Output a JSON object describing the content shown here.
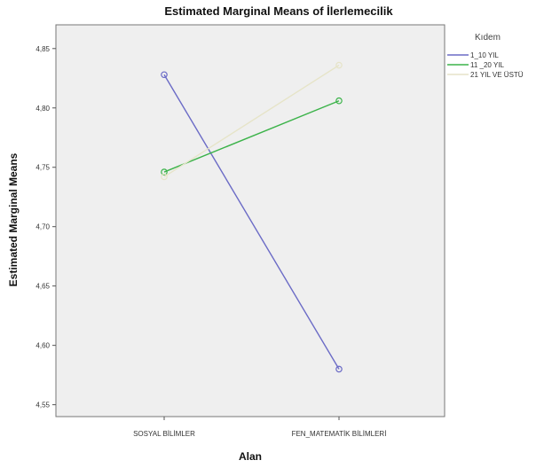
{
  "chart_data": {
    "type": "line",
    "title": "Estimated Marginal Means of İlerlemecilik",
    "xlabel": "Alan",
    "ylabel": "Estimated Marginal Means",
    "categories": [
      "SOSYAL BİLİMLER",
      "FEN_MATEMATİK BİLİMLERİ"
    ],
    "ylim": [
      4.54,
      4.87
    ],
    "yticks": [
      "4,55",
      "4,60",
      "4,65",
      "4,70",
      "4,75",
      "4,80",
      "4,85"
    ],
    "ytick_values": [
      4.55,
      4.6,
      4.65,
      4.7,
      4.75,
      4.8,
      4.85
    ],
    "grid": false,
    "legend": {
      "title": "Kıdem",
      "placement": "right"
    },
    "series": [
      {
        "name": "1_10 YIL",
        "values": [
          4.828,
          4.58
        ],
        "color": "#6b6bc6"
      },
      {
        "name": "11 _20 YIL",
        "values": [
          4.746,
          4.806
        ],
        "color": "#3cb34a"
      },
      {
        "name": "21 YIL VE ÜSTÜ",
        "values": [
          4.742,
          4.836
        ],
        "color": "#e6e4c8"
      }
    ],
    "plot_background": "#efefef"
  }
}
